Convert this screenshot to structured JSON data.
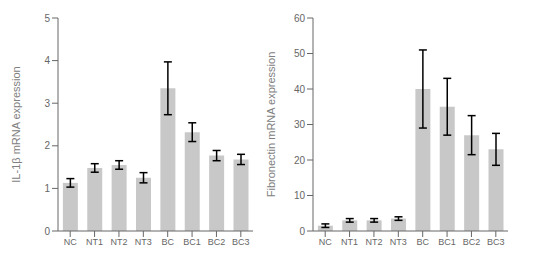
{
  "chart_data": [
    {
      "type": "bar",
      "categories": [
        "NC",
        "NT1",
        "NT2",
        "NT3",
        "BC",
        "BC1",
        "BC2",
        "BC3"
      ],
      "values": [
        1.13,
        1.48,
        1.55,
        1.25,
        3.35,
        2.32,
        1.77,
        1.68
      ],
      "errors": [
        0.1,
        0.1,
        0.1,
        0.12,
        0.62,
        0.22,
        0.12,
        0.12
      ],
      "ylim": [
        0,
        5
      ],
      "yticks": [
        0,
        1,
        2,
        3,
        4,
        5
      ],
      "ylabel": "IL-1β mRNA expression",
      "color": "#c8c8c8",
      "grid": false
    },
    {
      "type": "bar",
      "categories": [
        "NC",
        "NT1",
        "NT2",
        "NT3",
        "BC",
        "BC1",
        "BC2",
        "BC3"
      ],
      "values": [
        1.5,
        3.0,
        3.0,
        3.5,
        40.0,
        35.0,
        27.0,
        23.0
      ],
      "errors": [
        0.5,
        0.5,
        0.5,
        0.5,
        11.0,
        8.0,
        5.5,
        4.5
      ],
      "ylim": [
        0,
        60
      ],
      "yticks": [
        0,
        10,
        20,
        30,
        40,
        50,
        60
      ],
      "ylabel": "Fibronectin mRNA expression",
      "color": "#c8c8c8",
      "grid": false
    }
  ]
}
